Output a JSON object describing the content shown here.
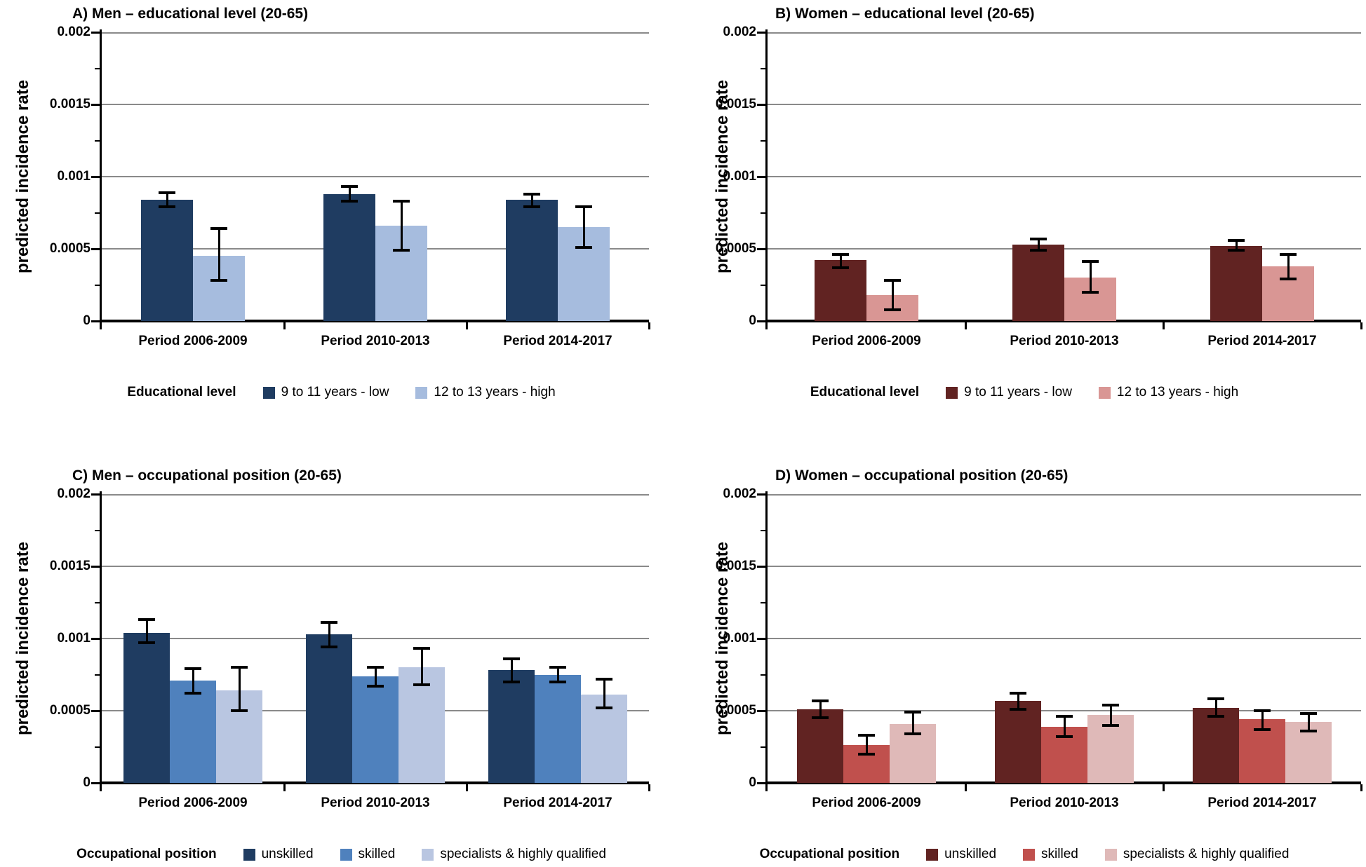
{
  "figure": {
    "ylabel": "predicted incidence rate",
    "ymax_label": "0.002",
    "yticks": [
      {
        "value": 0,
        "label": "0"
      },
      {
        "value": 0.0005,
        "label": "0.0005"
      },
      {
        "value": 0.001,
        "label": "0.001"
      },
      {
        "value": 0.0015,
        "label": "0.0015"
      },
      {
        "value": 0.002,
        "label": "0.002"
      }
    ],
    "categories": [
      "Period 2006-2009",
      "Period 2010-2013",
      "Period 2014-2017"
    ]
  },
  "chart_data": [
    {
      "id": "A",
      "type": "bar",
      "title": "A) Men – educational level (20-65)",
      "xlabel": "",
      "ylabel": "predicted incidence rate",
      "ylim": [
        0,
        0.002
      ],
      "grid": true,
      "legend_position": "bottom",
      "legend_title": "Educational level",
      "categories": [
        "Period 2006-2009",
        "Period 2010-2013",
        "Period 2014-2017"
      ],
      "series": [
        {
          "name": "9 to 11 years - low",
          "color": "#1F3C61",
          "values": [
            0.00084,
            0.00088,
            0.00084
          ],
          "ci_low": [
            0.00078,
            0.00082,
            0.00078
          ],
          "ci_high": [
            0.0009,
            0.00094,
            0.00089
          ]
        },
        {
          "name": "12 to 13 years - high",
          "color": "#A6BCDE",
          "values": [
            0.00045,
            0.00066,
            0.00065
          ],
          "ci_low": [
            0.00027,
            0.00048,
            0.0005
          ],
          "ci_high": [
            0.00065,
            0.00084,
            0.0008
          ]
        }
      ]
    },
    {
      "id": "B",
      "type": "bar",
      "title": "B) Women – educational level (20-65)",
      "xlabel": "",
      "ylabel": "predicted incidence rate",
      "ylim": [
        0,
        0.002
      ],
      "grid": true,
      "legend_position": "bottom",
      "legend_title": "Educational level",
      "categories": [
        "Period 2006-2009",
        "Period 2010-2013",
        "Period 2014-2017"
      ],
      "series": [
        {
          "name": "9 to 11 years - low",
          "color": "#612322",
          "values": [
            0.00042,
            0.00053,
            0.00052
          ],
          "ci_low": [
            0.00036,
            0.00048,
            0.00048
          ],
          "ci_high": [
            0.00047,
            0.00058,
            0.00057
          ]
        },
        {
          "name": "12 to 13 years - high",
          "color": "#D99694",
          "values": [
            0.00018,
            0.0003,
            0.00038
          ],
          "ci_low": [
            7e-05,
            0.00019,
            0.00028
          ],
          "ci_high": [
            0.00029,
            0.00042,
            0.00047
          ]
        }
      ]
    },
    {
      "id": "C",
      "type": "bar",
      "title": "C) Men – occupational position (20-65)",
      "xlabel": "",
      "ylabel": "predicted incidence rate",
      "ylim": [
        0,
        0.002
      ],
      "grid": true,
      "legend_position": "bottom",
      "legend_title": "Occupational position",
      "categories": [
        "Period 2006-2009",
        "Period 2010-2013",
        "Period 2014-2017"
      ],
      "series": [
        {
          "name": "unskilled",
          "color": "#1F3C61",
          "values": [
            0.00104,
            0.00103,
            0.00078
          ],
          "ci_low": [
            0.00096,
            0.00093,
            0.00069
          ],
          "ci_high": [
            0.00114,
            0.00112,
            0.00087
          ]
        },
        {
          "name": "skilled",
          "color": "#4F81BD",
          "values": [
            0.00071,
            0.00074,
            0.00075
          ],
          "ci_low": [
            0.00061,
            0.00066,
            0.00069
          ],
          "ci_high": [
            0.0008,
            0.00081,
            0.00081
          ]
        },
        {
          "name": "specialists & highly qualified",
          "color": "#B9C6E1",
          "values": [
            0.00064,
            0.0008,
            0.00061
          ],
          "ci_low": [
            0.00049,
            0.00067,
            0.00051
          ],
          "ci_high": [
            0.00081,
            0.00094,
            0.00073
          ]
        }
      ]
    },
    {
      "id": "D",
      "type": "bar",
      "title": "D) Women – occupational position (20-65)",
      "xlabel": "",
      "ylabel": "predicted incidence rate",
      "ylim": [
        0,
        0.002
      ],
      "grid": true,
      "legend_position": "bottom",
      "legend_title": "Occupational position",
      "categories": [
        "Period 2006-2009",
        "Period 2010-2013",
        "Period 2014-2017"
      ],
      "series": [
        {
          "name": "unskilled",
          "color": "#612322",
          "values": [
            0.00051,
            0.00057,
            0.00052
          ],
          "ci_low": [
            0.00044,
            0.0005,
            0.00045
          ],
          "ci_high": [
            0.00058,
            0.00063,
            0.00059
          ]
        },
        {
          "name": "skilled",
          "color": "#C0504D",
          "values": [
            0.00026,
            0.00039,
            0.00044
          ],
          "ci_low": [
            0.00019,
            0.00031,
            0.00036
          ],
          "ci_high": [
            0.00034,
            0.00047,
            0.00051
          ]
        },
        {
          "name": "specialists & highly qualified",
          "color": "#DFB9B8",
          "values": [
            0.00041,
            0.00047,
            0.00042
          ],
          "ci_low": [
            0.00033,
            0.00039,
            0.00035
          ],
          "ci_high": [
            0.0005,
            0.00055,
            0.00049
          ]
        }
      ]
    }
  ],
  "style_colors": {
    "gridline": "#8A8A8A",
    "axis": "#000000",
    "background": "#FFFFFF"
  }
}
